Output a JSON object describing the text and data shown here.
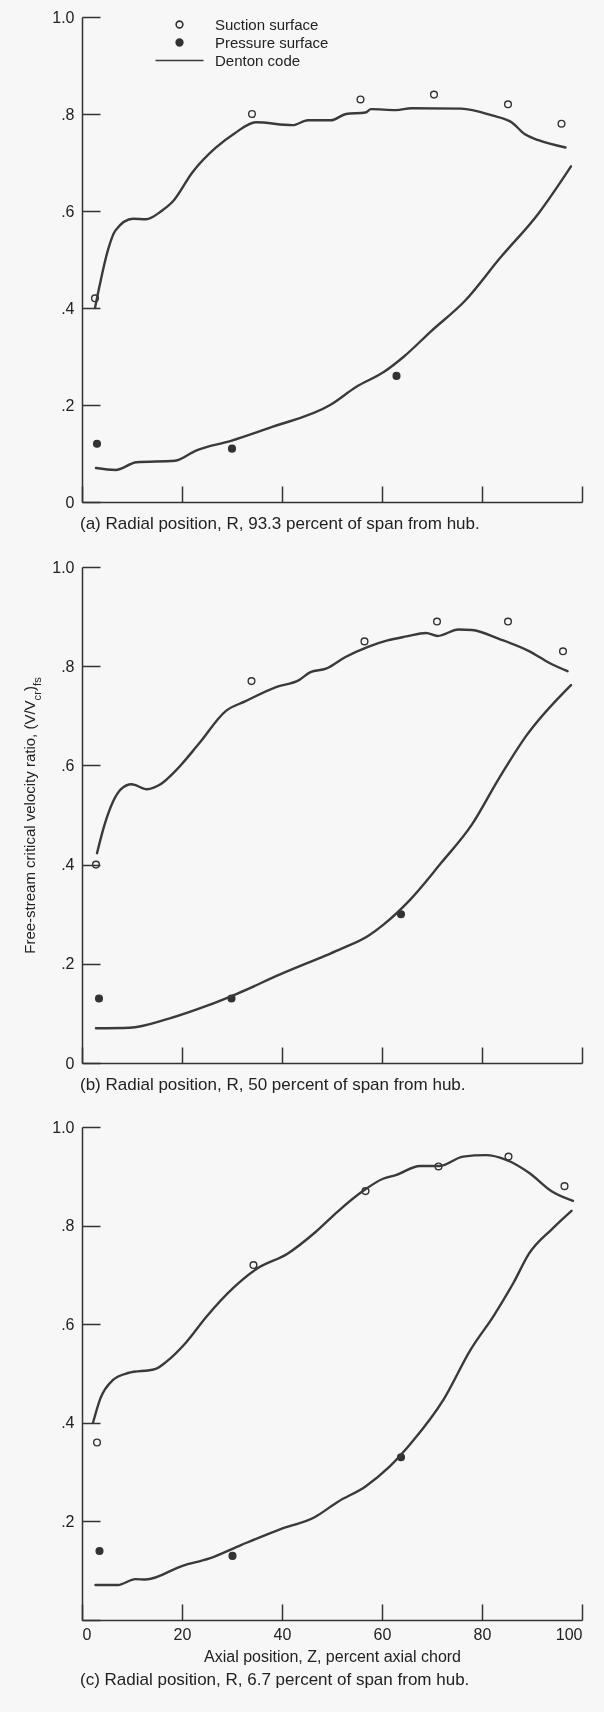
{
  "chart_data": [
    {
      "type": "line",
      "title": "(a) Radial position, R, 93.3 percent of span from hub.",
      "xlim": [
        0,
        100
      ],
      "ylim": [
        0,
        1
      ],
      "xticks": [
        0,
        20,
        40,
        60,
        80,
        100
      ],
      "yticks": [
        0,
        {
          "value": 0.2,
          "label": ".2"
        },
        {
          "value": 0.4,
          "label": ".4"
        },
        {
          "value": 0.6,
          "label": ".6"
        },
        {
          "value": 0.8,
          "label": ".8"
        },
        {
          "value": 1,
          "label": "1.0"
        }
      ],
      "tick_labels": "y",
      "legend": "top left",
      "series": [
        {
          "name": "Suction surface",
          "type": "scatter",
          "marker": "circle-open",
          "color": "#333333",
          "x": [
            2.6,
            34,
            55.7,
            70.4,
            85.2,
            95.9
          ],
          "values": [
            0.42,
            0.8,
            0.83,
            0.84,
            0.82,
            0.78
          ]
        },
        {
          "name": "Pressure surface",
          "type": "scatter",
          "marker": "circle",
          "color": "#333333",
          "x": [
            3,
            30,
            62.9
          ],
          "values": [
            0.12,
            0.11,
            0.26
          ]
        },
        {
          "name": "Denton code",
          "type": "line",
          "color": "#3a3a3a",
          "x": [
            2.6,
            3.6,
            5.2,
            6.7,
            10.2,
            12.8,
            15.9,
            18.2,
            22.1,
            26.7,
            30.5,
            34.8,
            42.1,
            45.2,
            49.8,
            52.8,
            56.7,
            57.8,
            62.8,
            65.9,
            75.8,
            82,
            85.9,
            88.6,
            91.3,
            96.7
          ],
          "values": [
            0.4,
            0.45,
            0.52,
            0.56,
            0.584,
            0.583,
            0.6,
            0.62,
            0.68,
            0.73,
            0.76,
            0.783,
            0.777,
            0.787,
            0.787,
            0.8,
            0.803,
            0.81,
            0.808,
            0.812,
            0.811,
            0.797,
            0.783,
            0.758,
            0.746,
            0.731
          ]
        },
        {
          "type": "line",
          "color": "#3a3a3a",
          "x": [
            2.8,
            6.7,
            10.9,
            18.6,
            22.8,
            29.8,
            37.5,
            49.8,
            54.8,
            60.5,
            64.4,
            69.8,
            76.7,
            83.6,
            91.3,
            97.8
          ],
          "values": [
            0.07,
            0.066,
            0.082,
            0.085,
            0.106,
            0.126,
            0.153,
            0.201,
            0.237,
            0.269,
            0.3,
            0.352,
            0.416,
            0.503,
            0.595,
            0.692
          ]
        }
      ]
    },
    {
      "type": "line",
      "title": "(b) Radial position, R, 50 percent of span from hub.",
      "ylabel": "Free-stream critical velocity ratio, (V/V$_{cr}$)$_{fs}$",
      "xlim": [
        0,
        100
      ],
      "ylim": [
        0,
        1
      ],
      "xticks": [
        0,
        20,
        40,
        60,
        80,
        100
      ],
      "yticks": [
        0,
        {
          "value": 0.2,
          "label": ".2"
        },
        {
          "value": 0.4,
          "label": ".4"
        },
        {
          "value": 0.6,
          "label": ".6"
        },
        {
          "value": 0.8,
          "label": ".8"
        },
        {
          "value": 1,
          "label": "1.0"
        }
      ],
      "tick_labels": "y",
      "series": [
        {
          "type": "scatter",
          "marker": "circle-open",
          "color": "#333333",
          "x": [
            2.8,
            33.9,
            56.5,
            71,
            85.2,
            96.2
          ],
          "values": [
            0.4,
            0.77,
            0.85,
            0.89,
            0.89,
            0.83
          ]
        },
        {
          "type": "scatter",
          "marker": "circle",
          "color": "#333333",
          "x": [
            3.4,
            29.9,
            63.8
          ],
          "values": [
            0.13,
            0.13,
            0.3
          ]
        },
        {
          "type": "line",
          "color": "#3a3a3a",
          "x": [
            3,
            4.5,
            7.8,
            9.9,
            13,
            15.7,
            18.8,
            23.4,
            28.8,
            32.6,
            38.8,
            43.4,
            45.7,
            48.8,
            52.6,
            57.2,
            61.1,
            64.9,
            68.8,
            71.1,
            75.3,
            78,
            83.4,
            89.5,
            93.4,
            97.1
          ],
          "values": [
            0.423,
            0.48,
            0.552,
            0.562,
            0.552,
            0.562,
            0.59,
            0.644,
            0.71,
            0.729,
            0.758,
            0.772,
            0.788,
            0.795,
            0.818,
            0.839,
            0.852,
            0.86,
            0.867,
            0.861,
            0.874,
            0.873,
            0.855,
            0.83,
            0.807,
            0.79
          ]
        },
        {
          "type": "line",
          "color": "#3a3a3a",
          "x": [
            2.8,
            9.5,
            17.2,
            24.9,
            31.1,
            39.5,
            48.8,
            51.8,
            57.2,
            60.3,
            65.7,
            71.8,
            78,
            83.4,
            88.8,
            97.8
          ],
          "values": [
            0.07,
            0.071,
            0.089,
            0.115,
            0.14,
            0.178,
            0.217,
            0.23,
            0.256,
            0.279,
            0.33,
            0.403,
            0.481,
            0.574,
            0.659,
            0.762
          ]
        }
      ]
    },
    {
      "type": "line",
      "title": "(c) Radial position, R, 6.7 percent of span from hub.",
      "xlabel": "Axial position, Z, percent axial chord",
      "xlim": [
        0,
        100
      ],
      "ylim": [
        0,
        1
      ],
      "xticks": [
        0,
        20,
        40,
        60,
        80,
        100
      ],
      "yticks": [
        {
          "value": 0,
          "label": null
        },
        {
          "value": 0.2,
          "label": ".2"
        },
        {
          "value": 0.4,
          "label": ".4"
        },
        {
          "value": 0.6,
          "label": ".6"
        },
        {
          "value": 0.8,
          "label": ".8"
        },
        {
          "value": 1,
          "label": "1.0"
        }
      ],
      "series": [
        {
          "type": "scatter",
          "marker": "circle-open",
          "color": "#333333",
          "x": [
            3,
            34.3,
            56.7,
            71.3,
            85.3,
            96.5
          ],
          "values": [
            0.36,
            0.72,
            0.87,
            0.92,
            0.94,
            0.88
          ]
        },
        {
          "type": "scatter",
          "marker": "circle",
          "color": "#333333",
          "x": [
            3.5,
            30.1,
            63.8
          ],
          "values": [
            0.14,
            0.13,
            0.33
          ]
        },
        {
          "type": "line",
          "color": "#3a3a3a",
          "x": [
            2.2,
            3.7,
            6.1,
            9.2,
            14.6,
            17,
            20.9,
            24.8,
            30.2,
            34.9,
            41.1,
            46.6,
            51.2,
            55.9,
            60.2,
            62.9,
            67.6,
            71.5,
            76.2,
            80.8,
            84.7,
            89.4,
            94,
            98.2
          ],
          "values": [
            0.4,
            0.45,
            0.486,
            0.501,
            0.509,
            0.525,
            0.564,
            0.614,
            0.673,
            0.712,
            0.743,
            0.786,
            0.829,
            0.868,
            0.895,
            0.903,
            0.921,
            0.921,
            0.94,
            0.943,
            0.934,
            0.907,
            0.869,
            0.85
          ]
        },
        {
          "type": "line",
          "color": "#3a3a3a",
          "x": [
            2.7,
            7.2,
            10.7,
            12.7,
            20.1,
            25.5,
            31.8,
            39.6,
            46.6,
            51.2,
            56.7,
            61.4,
            66,
            72.3,
            77.7,
            82.4,
            86.3,
            89.4,
            94,
            97.9
          ],
          "values": [
            0.071,
            0.071,
            0.083,
            0.082,
            0.11,
            0.125,
            0.152,
            0.184,
            0.209,
            0.24,
            0.271,
            0.31,
            0.361,
            0.447,
            0.548,
            0.618,
            0.684,
            0.743,
            0.793,
            0.83
          ]
        }
      ]
    }
  ]
}
